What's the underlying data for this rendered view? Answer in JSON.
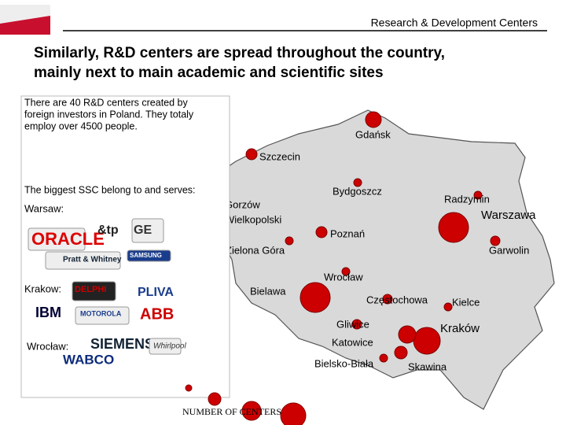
{
  "header": {
    "title": "Research & Development Centers"
  },
  "headline": [
    "Similarly, R&D centers are spread throughout the country,",
    "mainly next to main academic and scientific sites"
  ],
  "info": {
    "intro": [
      "There are 40 R&D centers created by",
      "foreign investors in Poland. They totaly",
      "employ over 4500 people."
    ],
    "ssc_heading": "The biggest SSC belong to and serves:",
    "groups": [
      {
        "city": "Warsaw:",
        "companies": [
          "ORACLE",
          "&tp",
          "GE",
          "Pratt & Whitney",
          "SAMSUNG"
        ]
      },
      {
        "city": "Krakow:",
        "companies": [
          "DELPHI",
          "PLIVA",
          "IBM",
          "MOTOROLA",
          "ABB"
        ]
      },
      {
        "city": "Wrocław:",
        "companies": [
          "SIEMENS",
          "Whirlpool",
          "WABCO"
        ]
      }
    ]
  },
  "map": {
    "cities": [
      {
        "lines": [
          "Gdańsk"
        ]
      },
      {
        "lines": [
          "Szczecin"
        ]
      },
      {
        "lines": [
          "Bydgoszcz"
        ]
      },
      {
        "lines": [
          "Radzymin"
        ]
      },
      {
        "lines": [
          "Gorzów",
          "Wielkopolski"
        ]
      },
      {
        "lines": [
          "Warszawa"
        ]
      },
      {
        "lines": [
          "Poznań"
        ]
      },
      {
        "lines": [
          "Zielona Góra"
        ]
      },
      {
        "lines": [
          "Garwolin"
        ]
      },
      {
        "lines": [
          "Wrocław"
        ]
      },
      {
        "lines": [
          "Bielawa"
        ]
      },
      {
        "lines": [
          "Częstochowa"
        ]
      },
      {
        "lines": [
          "Kielce"
        ]
      },
      {
        "lines": [
          "Gliwice"
        ]
      },
      {
        "lines": [
          "Kraków"
        ]
      },
      {
        "lines": [
          "Katowice"
        ]
      },
      {
        "lines": [
          "Bielsko-Biała"
        ]
      },
      {
        "lines": [
          "Skawina"
        ]
      }
    ],
    "legend": "NUMBER OF CENTERS"
  }
}
